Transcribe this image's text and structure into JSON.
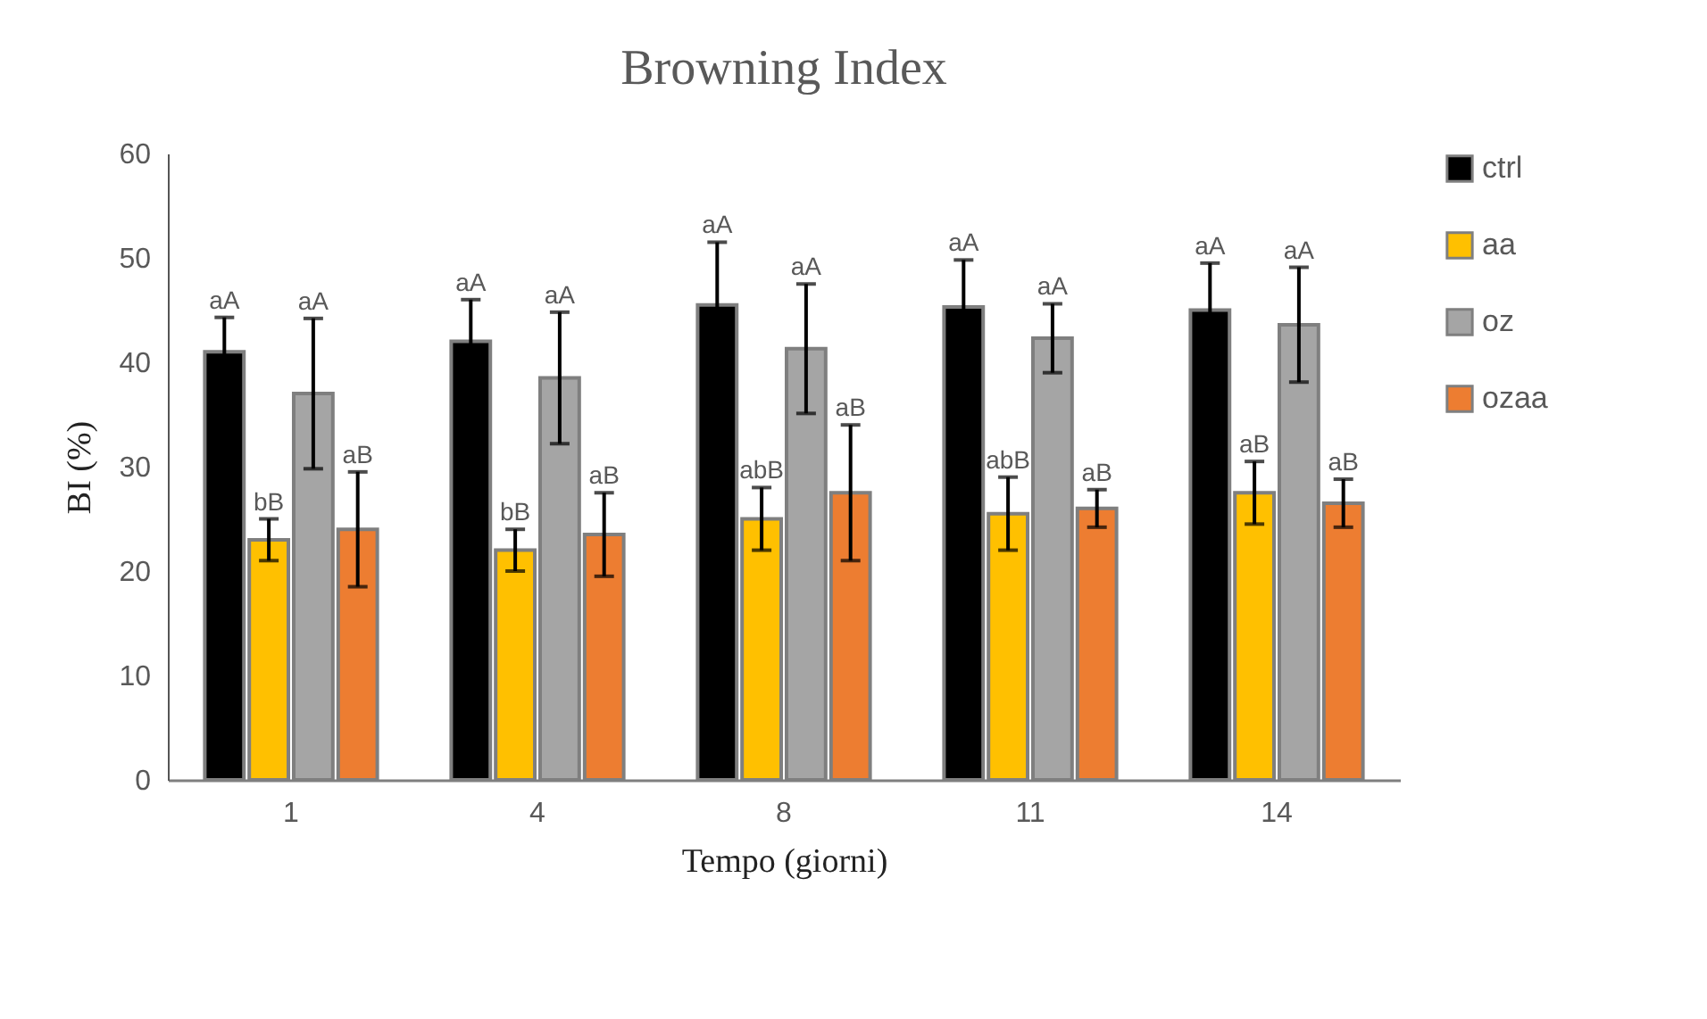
{
  "chart_data": {
    "type": "bar",
    "title": "Browning Index",
    "xlabel": "Tempo (giorni)",
    "ylabel": "BI (%)",
    "categories": [
      "1",
      "4",
      "8",
      "11",
      "14"
    ],
    "series": [
      {
        "name": "ctrl",
        "color": "#000000",
        "values": [
          41,
          42,
          45.5,
          45.3,
          45
        ],
        "errors": [
          3.3,
          4,
          6,
          4.5,
          4.5
        ],
        "value_labels": [
          "aA",
          "aA",
          "aA",
          "aA",
          "aA"
        ]
      },
      {
        "name": "aa",
        "color": "#ffc000",
        "values": [
          23,
          22,
          25,
          25.5,
          27.5
        ],
        "errors": [
          2,
          2,
          3,
          3.5,
          3
        ],
        "value_labels": [
          "bB",
          "bB",
          "abB",
          "abB",
          "aB"
        ]
      },
      {
        "name": "oz",
        "color": "#a5a5a5",
        "values": [
          37,
          38.5,
          41.3,
          42.3,
          43.6
        ],
        "errors": [
          7.2,
          6.3,
          6.2,
          3.3,
          5.5
        ],
        "value_labels": [
          "aA",
          "aA",
          "aA",
          "aA",
          "aA"
        ]
      },
      {
        "name": "ozaa",
        "color": "#ed7d31",
        "values": [
          24,
          23.5,
          27.5,
          26,
          26.5
        ],
        "errors": [
          5.5,
          4,
          6.5,
          1.8,
          2.3
        ],
        "value_labels": [
          "aB",
          "aB",
          "aB",
          "aB",
          "aB"
        ]
      }
    ],
    "ylim": [
      0,
      60
    ],
    "yticks": [
      0,
      10,
      20,
      30,
      40,
      50,
      60
    ],
    "grid": false,
    "legend": "right"
  }
}
